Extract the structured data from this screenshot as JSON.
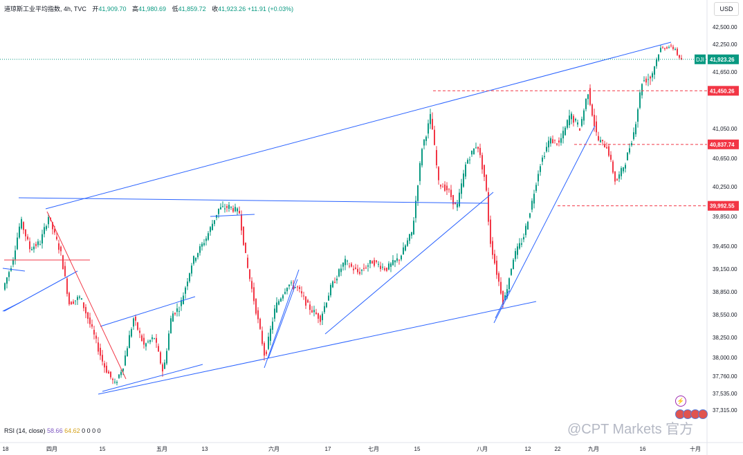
{
  "header": {
    "symbol": "道琼斯工业平均指数",
    "interval": "4h",
    "source": "TVC",
    "open_label": "开",
    "open": "41,909.70",
    "high_label": "高",
    "high": "41,980.69",
    "low_label": "低",
    "low": "41,859.72",
    "close_label": "收",
    "close": "41,923.26",
    "change": "+11.91 (+0.03%)"
  },
  "currency_button": "USD",
  "indicator": {
    "label": "RSI (14, close)",
    "value1": "58.66",
    "value2": "64.62",
    "zeros": "0 0 0 0"
  },
  "watermark": "@CPT Markets 官方",
  "colors": {
    "up": "#089981",
    "down": "#f23645",
    "trend": "#2962ff",
    "pink": "#f23645"
  },
  "chart_data": {
    "type": "candlestick",
    "y_ticks": [
      "42,500.00",
      "42,250.00",
      "41,650.00",
      "41,050.00",
      "40,650.00",
      "40,250.00",
      "39,850.00",
      "39,450.00",
      "39,150.00",
      "38,850.00",
      "38,550.00",
      "38,250.00",
      "38,000.00",
      "37,760.00",
      "37,535.00",
      "37,315.00"
    ],
    "y_tick_values": [
      42500,
      42250,
      41650,
      41050,
      40650,
      40250,
      39850,
      39450,
      39150,
      38850,
      38550,
      38250,
      38000,
      37760,
      37535,
      37315
    ],
    "x_ticks": [
      "18",
      "四月",
      "15",
      "五月",
      "13",
      "六月",
      "17",
      "七月",
      "15",
      "八月",
      "12",
      "22",
      "九月",
      "16",
      "十月"
    ],
    "price_tags": [
      {
        "label": "DJI",
        "value": 41923.26,
        "text": "41,923.26",
        "kind": "last"
      },
      {
        "value": 41450.26,
        "text": "41,450.26",
        "kind": "level"
      },
      {
        "value": 40837.74,
        "text": "40,837.74",
        "kind": "level"
      },
      {
        "value": 39992.55,
        "text": "39,992.55",
        "kind": "level"
      }
    ],
    "trend_lines_count": 14
  }
}
